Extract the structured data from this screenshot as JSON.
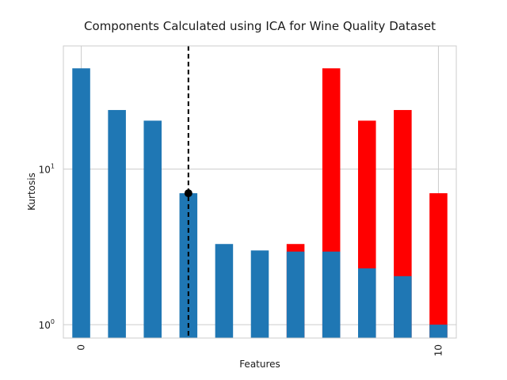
{
  "chart_data": {
    "type": "bar",
    "title": "Components Calculated using ICA for Wine Quality Dataset",
    "xlabel": "Features",
    "ylabel": "Kurtosis",
    "yscale": "log",
    "ylim": [
      0.82,
      62
    ],
    "x": [
      0,
      1,
      2,
      3,
      4,
      5,
      6,
      7,
      8,
      9,
      10
    ],
    "xlim": [
      -0.5,
      10.5
    ],
    "x_tick_labels": [
      "0",
      "10"
    ],
    "x_tick_positions": [
      0,
      10
    ],
    "y_tick_labels": [
      "10^0",
      "10^1"
    ],
    "y_tick_values": [
      1,
      10
    ],
    "grid": true,
    "series": [
      {
        "color": "#1f77b4",
        "values": [
          44.5,
          24.0,
          20.5,
          7.0,
          3.3,
          3.0,
          2.95,
          2.95,
          2.3,
          2.05,
          1.0
        ]
      },
      {
        "color": "#ff0000",
        "values": [
          null,
          null,
          null,
          null,
          null,
          null,
          3.3,
          44.5,
          20.5,
          24.0,
          7.0
        ]
      }
    ],
    "marker": {
      "x": 3,
      "y": 7.0,
      "style": "dashed vertical line with point",
      "color": "#000000"
    }
  }
}
